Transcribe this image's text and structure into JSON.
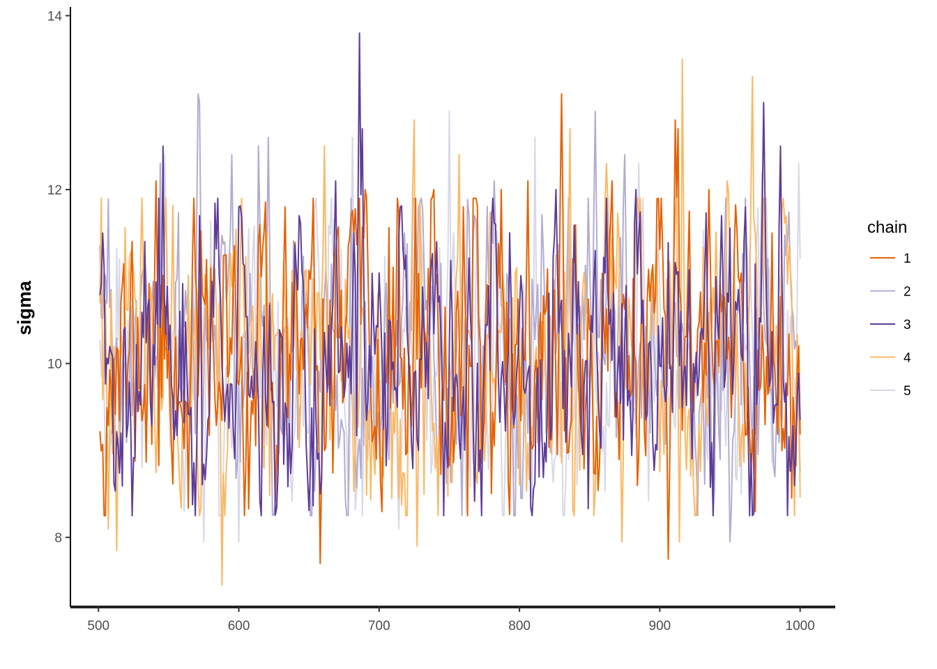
{
  "chart_data": {
    "type": "line",
    "title": "",
    "xlabel": "",
    "ylabel": "sigma",
    "xlim": [
      480,
      1025
    ],
    "ylim": [
      7.2,
      14.1
    ],
    "x_ticks": [
      500,
      600,
      700,
      800,
      900,
      1000
    ],
    "y_ticks": [
      8,
      10,
      12
    ],
    "y_ticks_extra": [
      14
    ],
    "grid": false,
    "legend": {
      "title": "chain",
      "placement": "right"
    },
    "x": {
      "start": 501,
      "end": 1000,
      "step": 1
    },
    "series": [
      {
        "name": "1",
        "color": "#e66101",
        "mean": 10.0,
        "sd": 0.82,
        "ar": 0.55,
        "seed": 11,
        "spikes": [
          [
            541,
            12.1
          ],
          [
            568,
            11.9
          ],
          [
            615,
            11.6
          ],
          [
            633,
            11.8
          ],
          [
            658,
            7.7
          ],
          [
            690,
            12.0
          ],
          [
            713,
            11.9
          ],
          [
            739,
            12.0
          ],
          [
            760,
            11.8
          ],
          [
            787,
            12.0
          ],
          [
            806,
            12.1
          ],
          [
            830,
            13.1
          ],
          [
            866,
            12.1
          ],
          [
            906,
            7.75
          ],
          [
            911,
            12.8
          ],
          [
            913,
            12.7
          ],
          [
            935,
            12.0
          ],
          [
            968,
            8.3
          ],
          [
            980,
            11.5
          ]
        ]
      },
      {
        "name": "2",
        "color": "#b2abd2",
        "mean": 10.0,
        "sd": 0.82,
        "ar": 0.55,
        "seed": 23,
        "spikes": [
          [
            544,
            12.3
          ],
          [
            571,
            13.2
          ],
          [
            572,
            13.0
          ],
          [
            595,
            12.4
          ],
          [
            614,
            12.5
          ],
          [
            621,
            12.6
          ],
          [
            680,
            11.9
          ],
          [
            718,
            11.5
          ],
          [
            768,
            11.7
          ],
          [
            782,
            12.1
          ],
          [
            854,
            12.9
          ],
          [
            875,
            12.4
          ],
          [
            950,
            7.95
          ],
          [
            973,
            12.2
          ],
          [
            982,
            8.7
          ]
        ]
      },
      {
        "name": "3",
        "color": "#5e3c99",
        "mean": 10.0,
        "sd": 0.82,
        "ar": 0.55,
        "seed": 37,
        "spikes": [
          [
            503,
            11.5
          ],
          [
            546,
            12.5
          ],
          [
            572,
            11.7
          ],
          [
            600,
            11.8
          ],
          [
            643,
            11.7
          ],
          [
            669,
            12.1
          ],
          [
            682,
            11.5
          ],
          [
            686,
            13.8
          ],
          [
            688,
            12.7
          ],
          [
            715,
            11.8
          ],
          [
            741,
            11.4
          ],
          [
            783,
            11.6
          ],
          [
            826,
            12.0
          ],
          [
            854,
            11.3
          ],
          [
            883,
            12.0
          ],
          [
            944,
            11.7
          ],
          [
            961,
            11.8
          ],
          [
            974,
            13.0
          ],
          [
            986,
            12.5
          ]
        ]
      },
      {
        "name": "4",
        "color": "#fdb863",
        "mean": 10.0,
        "sd": 0.82,
        "ar": 0.55,
        "seed": 53,
        "spikes": [
          [
            507,
            8.1
          ],
          [
            513,
            7.85
          ],
          [
            531,
            11.9
          ],
          [
            588,
            7.45
          ],
          [
            620,
            11.5
          ],
          [
            661,
            12.5
          ],
          [
            725,
            12.8
          ],
          [
            727,
            7.9
          ],
          [
            757,
            12.4
          ],
          [
            800,
            8.6
          ],
          [
            836,
            12.7
          ],
          [
            862,
            12.3
          ],
          [
            873,
            7.95
          ],
          [
            912,
            12.0
          ],
          [
            916,
            13.5
          ],
          [
            914,
            7.95
          ],
          [
            948,
            12.1
          ],
          [
            966,
            13.3
          ],
          [
            968,
            11.5
          ]
        ]
      },
      {
        "name": "5",
        "color": "#d8d8e8",
        "mean": 10.0,
        "sd": 0.82,
        "ar": 0.55,
        "seed": 71,
        "spikes": [
          [
            547,
            12.4
          ],
          [
            561,
            8.3
          ],
          [
            575,
            7.95
          ],
          [
            600,
            7.95
          ],
          [
            661,
            12.4
          ],
          [
            681,
            12.6
          ],
          [
            686,
            11.7
          ],
          [
            714,
            8.1
          ],
          [
            750,
            12.9
          ],
          [
            753,
            11.5
          ],
          [
            810,
            8.0
          ],
          [
            811,
            12.6
          ],
          [
            885,
            12.3
          ],
          [
            899,
            11.6
          ],
          [
            958,
            8.5
          ],
          [
            999,
            12.3
          ]
        ]
      }
    ]
  }
}
